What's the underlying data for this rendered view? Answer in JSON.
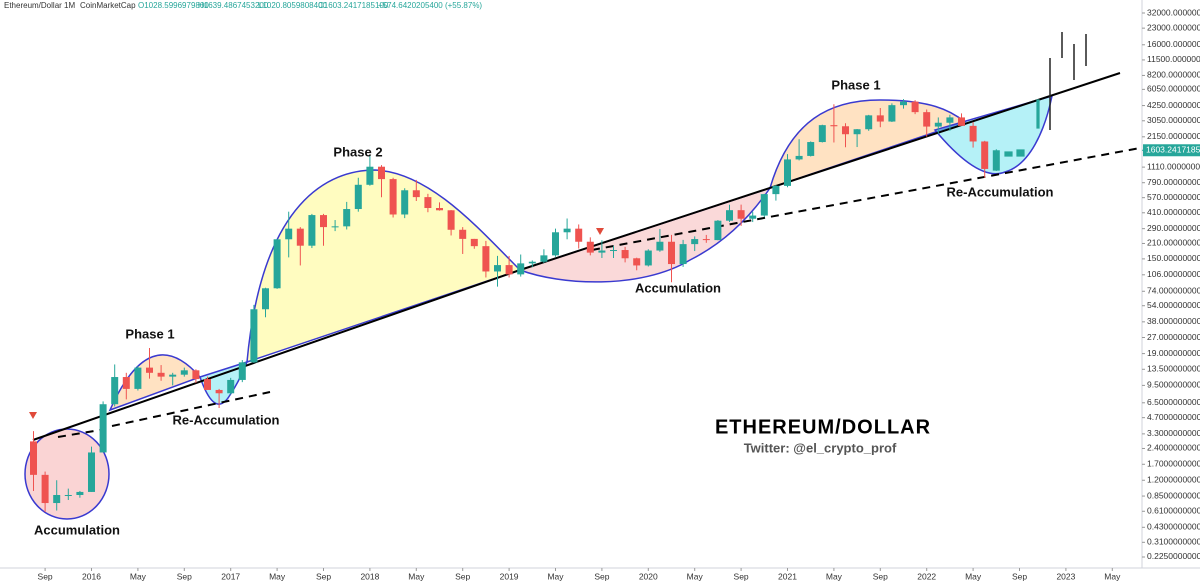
{
  "chart_data": {
    "type": "candlestick",
    "title": "ETHEREUM/DOLLAR",
    "subtitle": "Twitter: @el_crypto_prof",
    "header": {
      "symbol": "Ethereum/Dollar",
      "interval": "1M",
      "source": "CoinMarketCap",
      "ohlc": [
        "O1028.5996979800",
        "H1639.4867453200",
        "L1020.8059808400",
        "C1603.2417185100",
        "+574.6420205400 (+55.87%)"
      ]
    },
    "annotations": [
      "Phase 1",
      "Re-Accumulation",
      "Accumulation",
      "Phase 2",
      "Accumulation",
      "Phase 1",
      "Re-Accumulation"
    ],
    "log_scale": true,
    "up_color": "#26a69a",
    "down_color": "#ef5350",
    "x": [
      "2015-08",
      "2015-09",
      "2015-10",
      "2015-11",
      "2015-12",
      "2016-01",
      "2016-02",
      "2016-03",
      "2016-04",
      "2016-05",
      "2016-06",
      "2016-07",
      "2016-08",
      "2016-09",
      "2016-10",
      "2016-11",
      "2016-12",
      "2017-01",
      "2017-02",
      "2017-03",
      "2017-04",
      "2017-05",
      "2017-06",
      "2017-07",
      "2017-08",
      "2017-09",
      "2017-10",
      "2017-11",
      "2017-12",
      "2018-01",
      "2018-02",
      "2018-03",
      "2018-04",
      "2018-05",
      "2018-06",
      "2018-07",
      "2018-08",
      "2018-09",
      "2018-10",
      "2018-11",
      "2018-12",
      "2019-01",
      "2019-02",
      "2019-03",
      "2019-04",
      "2019-05",
      "2019-06",
      "2019-07",
      "2019-08",
      "2019-09",
      "2019-10",
      "2019-11",
      "2019-12",
      "2020-01",
      "2020-02",
      "2020-03",
      "2020-04",
      "2020-05",
      "2020-06",
      "2020-07",
      "2020-08",
      "2020-09",
      "2020-10",
      "2020-11",
      "2020-12",
      "2021-01",
      "2021-02",
      "2021-03",
      "2021-04",
      "2021-05",
      "2021-06",
      "2021-07",
      "2021-08",
      "2021-09",
      "2021-10",
      "2021-11",
      "2021-12",
      "2022-01",
      "2022-02",
      "2022-03",
      "2022-04",
      "2022-05",
      "2022-06",
      "2022-07"
    ],
    "open": [
      2.8,
      1.35,
      0.73,
      0.87,
      0.87,
      0.93,
      2.2,
      6.3,
      11.4,
      8.8,
      14,
      12.5,
      11.5,
      12,
      13.2,
      10.9,
      8.6,
      8,
      10.7,
      15.7,
      50,
      79,
      230,
      290,
      200,
      390,
      300,
      305,
      445,
      755,
      1120,
      855,
      395,
      670,
      577,
      455,
      433,
      283,
      232,
      198,
      114,
      131,
      107,
      136,
      141,
      162,
      268,
      290,
      218,
      172,
      180,
      182,
      152,
      130,
      180,
      218,
      134,
      207,
      231,
      226,
      345,
      434,
      360,
      386,
      616,
      737,
      1313,
      1417,
      1918,
      2773,
      2706,
      2275,
      2536,
      3433,
      3000,
      4288,
      4631,
      3682,
      2688,
      2922,
      3282,
      2730,
      1942,
      1028.59969798
    ],
    "high": [
      3.5,
      1.45,
      1.2,
      1.0,
      0.95,
      2.5,
      6.7,
      15,
      12.5,
      14.5,
      21.5,
      14.8,
      12.5,
      14,
      13.5,
      11.5,
      8.8,
      11.2,
      16.5,
      55,
      80,
      230,
      420,
      300,
      400,
      400,
      350,
      520,
      880,
      1420,
      1160,
      880,
      700,
      840,
      620,
      515,
      435,
      300,
      232,
      222,
      160,
      160,
      165,
      145,
      185,
      290,
      362,
      318,
      240,
      225,
      199,
      195,
      154,
      185,
      288,
      253,
      227,
      245,
      253,
      350,
      488,
      490,
      420,
      620,
      755,
      1475,
      2040,
      1945,
      2800,
      4370,
      2890,
      2550,
      3470,
      4030,
      4460,
      4890,
      4780,
      3900,
      3280,
      3480,
      3580,
      2960,
      1970,
      1639.48674532
    ],
    "low": [
      0.95,
      0.6,
      0.62,
      0.78,
      0.82,
      0.93,
      2.2,
      6,
      7,
      8.5,
      11,
      10.5,
      9.5,
      11.5,
      10,
      8.8,
      5.8,
      7.8,
      10.2,
      15.5,
      42,
      78,
      155,
      130,
      190,
      200,
      275,
      285,
      420,
      740,
      575,
      370,
      365,
      530,
      415,
      430,
      250,
      167,
      187,
      100,
      82,
      100,
      102,
      125,
      137,
      157,
      230,
      188,
      162,
      153,
      153,
      139,
      117,
      127,
      175,
      90,
      126,
      178,
      213,
      225,
      335,
      308,
      335,
      373,
      535,
      716,
      1285,
      1400,
      1900,
      1900,
      1710,
      1720,
      2450,
      2650,
      2970,
      3980,
      3525,
      2160,
      2300,
      2450,
      2780,
      1700,
      880,
      1020.80598084
    ],
    "close": [
      1.35,
      0.73,
      0.87,
      0.87,
      0.93,
      2.2,
      6.3,
      11.4,
      8.8,
      14,
      12.5,
      11.5,
      12,
      13.2,
      10.9,
      8.6,
      8,
      10.7,
      15.7,
      50,
      79,
      230,
      290,
      200,
      390,
      300,
      305,
      445,
      755,
      1120,
      855,
      395,
      670,
      577,
      455,
      433,
      283,
      232,
      198,
      114,
      131,
      107,
      136,
      141,
      162,
      268,
      290,
      218,
      172,
      180,
      182,
      152,
      130,
      180,
      218,
      134,
      207,
      231,
      226,
      345,
      434,
      360,
      386,
      616,
      737,
      1313,
      1417,
      1918,
      2773,
      2706,
      2275,
      2536,
      3433,
      3000,
      4288,
      4631,
      3682,
      2688,
      2922,
      3282,
      2730,
      1942,
      1067,
      1603.24171851
    ],
    "last_price": {
      "value": 1603.24171851,
      "label": "1603.2417185100"
    },
    "ylim": [
      0.177,
      42500
    ],
    "yticks": [
      {
        "value": 32000,
        "label": "32000.0000000000"
      },
      {
        "value": 23000,
        "label": "23000.0000000000"
      },
      {
        "value": 16000,
        "label": "16000.0000000000"
      },
      {
        "value": 11500,
        "label": "11500.0000000000"
      },
      {
        "value": 8200,
        "label": "8200.0000000000"
      },
      {
        "value": 6050,
        "label": "6050.0000000000"
      },
      {
        "value": 4250,
        "label": "4250.0000000000"
      },
      {
        "value": 3050,
        "label": "3050.0000000000"
      },
      {
        "value": 2150,
        "label": "2150.0000000000"
      },
      {
        "value": 1110,
        "label": "1110.0000000000"
      },
      {
        "value": 790,
        "label": "790.0000000000"
      },
      {
        "value": 570,
        "label": "570.0000000000"
      },
      {
        "value": 410,
        "label": "410.0000000000"
      },
      {
        "value": 290,
        "label": "290.0000000000"
      },
      {
        "value": 210,
        "label": "210.0000000000"
      },
      {
        "value": 150,
        "label": "150.0000000000"
      },
      {
        "value": 106,
        "label": "106.0000000000"
      },
      {
        "value": 74,
        "label": "74.0000000000"
      },
      {
        "value": 54,
        "label": "54.0000000000"
      },
      {
        "value": 38,
        "label": "38.0000000000"
      },
      {
        "value": 27,
        "label": "27.0000000000"
      },
      {
        "value": 19,
        "label": "19.0000000000"
      },
      {
        "value": 13.5,
        "label": "13.5000000000"
      },
      {
        "value": 9.5,
        "label": "9.5000000000"
      },
      {
        "value": 6.5,
        "label": "6.5000000000"
      },
      {
        "value": 4.7,
        "label": "4.7000000000"
      },
      {
        "value": 3.3,
        "label": "3.3000000000"
      },
      {
        "value": 2.4,
        "label": "2.4000000000"
      },
      {
        "value": 1.7,
        "label": "1.7000000000"
      },
      {
        "value": 1.2,
        "label": "1.2000000000"
      },
      {
        "value": 0.85,
        "label": "0.8500000000"
      },
      {
        "value": 0.61,
        "label": "0.6100000000"
      },
      {
        "value": 0.43,
        "label": "0.4300000000"
      },
      {
        "value": 0.31,
        "label": "0.3100000000"
      },
      {
        "value": 0.225,
        "label": "0.2250000000"
      }
    ],
    "xticks": [
      {
        "value": "2015-09",
        "label": "Sep"
      },
      {
        "value": "2016-01",
        "label": "2016"
      },
      {
        "value": "2016-05",
        "label": "May"
      },
      {
        "value": "2016-09",
        "label": "Sep"
      },
      {
        "value": "2017-01",
        "label": "2017"
      },
      {
        "value": "2017-05",
        "label": "May"
      },
      {
        "value": "2017-09",
        "label": "Sep"
      },
      {
        "value": "2018-01",
        "label": "2018"
      },
      {
        "value": "2018-05",
        "label": "May"
      },
      {
        "value": "2018-09",
        "label": "Sep"
      },
      {
        "value": "2019-01",
        "label": "2019"
      },
      {
        "value": "2019-05",
        "label": "May"
      },
      {
        "value": "2019-09",
        "label": "Sep"
      },
      {
        "value": "2020-01",
        "label": "2020"
      },
      {
        "value": "2020-05",
        "label": "May"
      },
      {
        "value": "2020-09",
        "label": "Sep"
      },
      {
        "value": "2021-01",
        "label": "2021"
      },
      {
        "value": "2021-05",
        "label": "May"
      },
      {
        "value": "2021-09",
        "label": "Sep"
      },
      {
        "value": "2022-01",
        "label": "2022"
      },
      {
        "value": "2022-05",
        "label": "May"
      },
      {
        "value": "2022-09",
        "label": "Sep"
      },
      {
        "value": "2023-01",
        "label": "2023"
      },
      {
        "value": "2023-05",
        "label": "May"
      }
    ]
  }
}
